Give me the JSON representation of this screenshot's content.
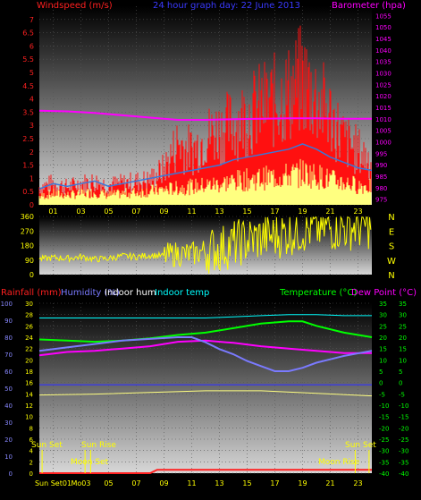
{
  "colors": {
    "wind": "#ff1010",
    "wind_avg": "#3a78d8",
    "gust_fill": "#ffff80",
    "baro": "#ff00ff",
    "dir": "#ffff00",
    "temp": "#00ff00",
    "dew": "#ff00ff",
    "humidity": "#7a7aff",
    "in_hum": "#ffffff",
    "in_temp": "#00ffff",
    "rain": "#ff2020",
    "rain_axis": "#8888ff",
    "temp_axis": "#00ff00",
    "grid": "#555555",
    "sun": "#ffff00",
    "moon": "#ffff00"
  },
  "chart_data": [
    {
      "type": "bar",
      "id": "wind",
      "title": "24 hour graph day:  22 June 2013",
      "left_label": "Windspeed (m/s)",
      "right_label": "Barometer (hpa)",
      "x_ticks": [
        "01",
        "03",
        "05",
        "07",
        "09",
        "11",
        "13",
        "15",
        "17",
        "19",
        "21",
        "23"
      ],
      "y_left_ticks": [
        "0",
        "0.5",
        "1",
        "1.5",
        "2",
        "2.5",
        "3",
        "3.5",
        "4",
        "4.5",
        "5",
        "5.5",
        "6",
        "6.5",
        "7"
      ],
      "y_left_range": [
        0,
        7.5
      ],
      "y_right_ticks": [
        "975",
        "980",
        "985",
        "990",
        "995",
        "1000",
        "1005",
        "1010",
        "1015",
        "1020",
        "1025",
        "1030",
        "1035",
        "1040",
        "1045",
        "1050",
        "1055"
      ],
      "y_right_range": [
        972.5,
        1059
      ],
      "x_range": [
        0,
        24
      ],
      "gust": [
        [
          0,
          1.0
        ],
        [
          1,
          1.2
        ],
        [
          2,
          1.0
        ],
        [
          3,
          1.2
        ],
        [
          4,
          1.3
        ],
        [
          5,
          1.1
        ],
        [
          6,
          1.2
        ],
        [
          7,
          1.3
        ],
        [
          8,
          1.4
        ],
        [
          9,
          2.0
        ],
        [
          10,
          3.5
        ],
        [
          11,
          3.0
        ],
        [
          12,
          3.8
        ],
        [
          13,
          4.2
        ],
        [
          14,
          4.5
        ],
        [
          15,
          5.0
        ],
        [
          16,
          5.5
        ],
        [
          17,
          5.8
        ],
        [
          18,
          6.2
        ],
        [
          19,
          7.0
        ],
        [
          20,
          6.0
        ],
        [
          21,
          5.0
        ],
        [
          22,
          3.6
        ],
        [
          23,
          3.0
        ],
        [
          24,
          2.5
        ]
      ],
      "wind_avg": [
        [
          0,
          0.6
        ],
        [
          1,
          0.8
        ],
        [
          2,
          0.7
        ],
        [
          3,
          0.8
        ],
        [
          4,
          0.9
        ],
        [
          5,
          0.7
        ],
        [
          6,
          0.8
        ],
        [
          7,
          0.9
        ],
        [
          8,
          1.0
        ],
        [
          9,
          1.1
        ],
        [
          10,
          1.2
        ],
        [
          11,
          1.3
        ],
        [
          12,
          1.4
        ],
        [
          13,
          1.5
        ],
        [
          14,
          1.7
        ],
        [
          15,
          1.8
        ],
        [
          16,
          1.9
        ],
        [
          17,
          2.0
        ],
        [
          18,
          2.1
        ],
        [
          19,
          2.3
        ],
        [
          20,
          2.1
        ],
        [
          21,
          1.8
        ],
        [
          22,
          1.6
        ],
        [
          23,
          1.4
        ],
        [
          24,
          1.3
        ]
      ],
      "baro": [
        [
          0,
          1013.5
        ],
        [
          2,
          1013.2
        ],
        [
          4,
          1012.5
        ],
        [
          6,
          1011.5
        ],
        [
          8,
          1010.5
        ],
        [
          10,
          1009.5
        ],
        [
          12,
          1009.5
        ],
        [
          14,
          1009.8
        ],
        [
          16,
          1010.0
        ],
        [
          18,
          1010.2
        ],
        [
          20,
          1010.2
        ],
        [
          22,
          1010.0
        ],
        [
          24,
          1010.0
        ]
      ]
    },
    {
      "type": "line",
      "id": "direction",
      "y_ticks": [
        "0",
        "90",
        "180",
        "270",
        "360"
      ],
      "y_range": [
        0,
        360
      ],
      "compass": [
        "N",
        "W",
        "S",
        "E",
        "N"
      ],
      "x_range": [
        0,
        24
      ],
      "dir": [
        [
          0,
          95
        ],
        [
          1,
          105
        ],
        [
          2,
          100
        ],
        [
          3,
          110
        ],
        [
          4,
          95
        ],
        [
          5,
          100
        ],
        [
          6,
          115
        ],
        [
          7,
          110
        ],
        [
          8,
          120
        ],
        [
          9,
          115
        ],
        [
          10,
          130
        ],
        [
          11,
          125
        ],
        [
          12,
          150
        ],
        [
          13,
          160
        ],
        [
          14,
          190
        ],
        [
          15,
          210
        ],
        [
          16,
          230
        ],
        [
          17,
          240
        ],
        [
          18,
          260
        ],
        [
          19,
          280
        ],
        [
          20,
          285
        ],
        [
          21,
          290
        ],
        [
          22,
          295
        ],
        [
          23,
          300
        ],
        [
          24,
          305
        ]
      ]
    },
    {
      "type": "line",
      "id": "temps",
      "label_rain": "Rainfall (mm)",
      "label_hum": "Humidity (%)",
      "label_in_hum": "Indoor hum",
      "label_in_temp": "Indoor temp",
      "label_temp": "Temperature (°C)",
      "label_dew": "Dew Point (°C)",
      "hum_ticks": [
        "0",
        "10",
        "20",
        "30",
        "40",
        "50",
        "60",
        "70",
        "80",
        "90",
        "100"
      ],
      "rain_ticks": [
        "0",
        "2",
        "4",
        "6",
        "8",
        "10",
        "12",
        "14",
        "16",
        "18",
        "20",
        "22",
        "24",
        "26",
        "28",
        "30"
      ],
      "temp_ticks": [
        "-40",
        "-35",
        "-30",
        "-25",
        "-20",
        "-15",
        "-10",
        "-5",
        "0",
        "5",
        "10",
        "15",
        "20",
        "25",
        "30",
        "35"
      ],
      "temp_ticks_right": [
        "-40",
        "-35",
        "-30",
        "-25",
        "-20",
        "-15",
        "-10",
        "-5",
        "0",
        "5",
        "10",
        "15",
        "20",
        "25",
        "30",
        "35"
      ],
      "temp_range": [
        -40,
        35
      ],
      "x_range": [
        0,
        24
      ],
      "x_ticks": [
        "Sun Set01",
        "Mo03",
        "05",
        "07",
        "09",
        "11",
        "13",
        "15",
        "17",
        "19",
        "21",
        "23"
      ],
      "moon_rise_label": "Moon Rise",
      "sun_set_label": "Sun Set",
      "sun_rise_label": "Sun Rise",
      "moon_set_label": "Moon Set",
      "temp": [
        [
          0,
          19
        ],
        [
          2,
          18.5
        ],
        [
          4,
          18
        ],
        [
          6,
          18.5
        ],
        [
          8,
          19.5
        ],
        [
          10,
          21
        ],
        [
          12,
          22
        ],
        [
          14,
          24
        ],
        [
          16,
          26
        ],
        [
          18,
          27
        ],
        [
          19,
          27
        ],
        [
          20,
          25
        ],
        [
          22,
          22
        ],
        [
          24,
          20
        ]
      ],
      "dew": [
        [
          0,
          12
        ],
        [
          2,
          13.5
        ],
        [
          4,
          14
        ],
        [
          6,
          15
        ],
        [
          8,
          16
        ],
        [
          10,
          18
        ],
        [
          12,
          18.5
        ],
        [
          14,
          17.5
        ],
        [
          16,
          16
        ],
        [
          18,
          15
        ],
        [
          20,
          14
        ],
        [
          22,
          13
        ],
        [
          24,
          13
        ]
      ],
      "in_temp": [
        [
          0,
          28.5
        ],
        [
          4,
          28.5
        ],
        [
          8,
          28.5
        ],
        [
          12,
          28.5
        ],
        [
          14,
          29
        ],
        [
          16,
          29.5
        ],
        [
          18,
          30
        ],
        [
          20,
          30
        ],
        [
          22,
          29.5
        ],
        [
          24,
          29.5
        ]
      ],
      "humidity": [
        [
          0,
          72
        ],
        [
          2,
          74
        ],
        [
          4,
          76
        ],
        [
          6,
          78
        ],
        [
          8,
          79
        ],
        [
          10,
          80
        ],
        [
          11,
          80
        ],
        [
          12,
          77
        ],
        [
          13,
          73
        ],
        [
          14,
          70
        ],
        [
          15,
          66
        ],
        [
          16,
          63
        ],
        [
          17,
          60
        ],
        [
          18,
          60
        ],
        [
          19,
          62
        ],
        [
          20,
          65
        ],
        [
          21,
          67
        ],
        [
          22,
          69
        ],
        [
          24,
          72
        ]
      ],
      "in_hum": [
        [
          0,
          52
        ],
        [
          6,
          52
        ],
        [
          12,
          52
        ],
        [
          18,
          52
        ],
        [
          24,
          52
        ]
      ],
      "rain": [
        [
          0,
          0
        ],
        [
          8,
          0
        ],
        [
          8.5,
          0.6
        ],
        [
          14,
          0.6
        ],
        [
          20,
          0.6
        ],
        [
          24,
          0.6
        ]
      ],
      "baro_low": [
        [
          0,
          46
        ],
        [
          4,
          46.5
        ],
        [
          8,
          47.5
        ],
        [
          12,
          48.5
        ],
        [
          16,
          48.5
        ],
        [
          20,
          47
        ],
        [
          24,
          45.5
        ]
      ],
      "sun_set_x": 0.2,
      "sun_rise_x": 3.3,
      "moon_rise_x": 22.8,
      "moon_set_x": 3.7
    }
  ]
}
